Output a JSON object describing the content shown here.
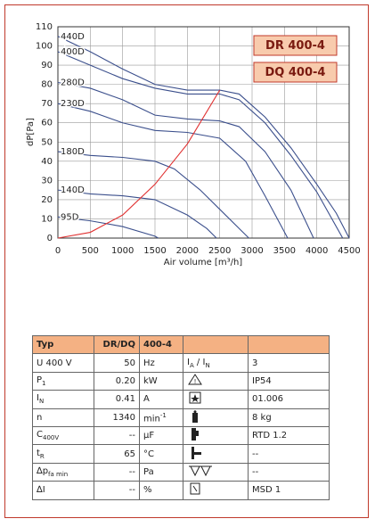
{
  "chart_data": {
    "type": "line",
    "x_label": "Air volume [m³/h]",
    "y_label": "dP[Pa]",
    "xlim": [
      0,
      4500
    ],
    "xticks": [
      0,
      500,
      1000,
      1500,
      2000,
      2500,
      3000,
      3500,
      4000,
      4500
    ],
    "ylim": [
      0,
      110
    ],
    "yticks": [
      0,
      10,
      20,
      30,
      40,
      50,
      60,
      70,
      80,
      90,
      100,
      110
    ],
    "grid": true,
    "annotations": [
      "DR 400-4",
      "DQ 400-4"
    ],
    "series": [
      {
        "name": "440D",
        "color": "#3b4f8c",
        "x": [
          0,
          500,
          1000,
          1500,
          2000,
          2500,
          2800,
          3200,
          3600,
          4000,
          4300,
          4500
        ],
        "values": [
          105,
          97,
          88,
          80,
          77,
          77,
          75,
          63,
          47,
          28,
          13,
          0
        ]
      },
      {
        "name": "400D",
        "color": "#3b4f8c",
        "x": [
          0,
          500,
          1000,
          1500,
          2000,
          2500,
          2800,
          3200,
          3600,
          4000,
          4400
        ],
        "values": [
          97,
          90,
          83,
          78,
          75,
          75,
          72,
          60,
          43,
          24,
          0
        ]
      },
      {
        "name": "280D",
        "color": "#3b4f8c",
        "x": [
          0,
          500,
          1000,
          1500,
          2000,
          2500,
          2800,
          3200,
          3600,
          3950
        ],
        "values": [
          81,
          78,
          72,
          64,
          62,
          61,
          58,
          45,
          25,
          0
        ]
      },
      {
        "name": "230D",
        "color": "#3b4f8c",
        "x": [
          0,
          500,
          1000,
          1500,
          2000,
          2500,
          2900,
          3200,
          3550
        ],
        "values": [
          70,
          66,
          60,
          56,
          55,
          52,
          40,
          22,
          0
        ]
      },
      {
        "name": "180D",
        "color": "#3b4f8c",
        "x": [
          0,
          500,
          1000,
          1500,
          1800,
          2200,
          2500,
          2800,
          2950
        ],
        "values": [
          45,
          43,
          42,
          40,
          36,
          25,
          15,
          5,
          0
        ]
      },
      {
        "name": "140D",
        "color": "#3b4f8c",
        "x": [
          0,
          500,
          1000,
          1500,
          2000,
          2300,
          2450
        ],
        "values": [
          25,
          23,
          22,
          20,
          12,
          5,
          0
        ]
      },
      {
        "name": "95D",
        "color": "#3b4f8c",
        "x": [
          0,
          500,
          1000,
          1500,
          1550
        ],
        "values": [
          11,
          9,
          6,
          1,
          0
        ]
      },
      {
        "color": "#e03030",
        "x": [
          0,
          500,
          1000,
          1500,
          2000,
          2500
        ],
        "values": [
          0,
          3,
          12,
          28,
          49,
          77
        ]
      }
    ]
  },
  "table": {
    "rows": [
      [
        [
          {
            "text": "Typ"
          }
        ],
        [
          {
            "text": "DR/DQ"
          }
        ],
        [
          {
            "text": "400-4"
          }
        ],
        [],
        []
      ],
      [
        [
          {
            "text": "U   400   V"
          }
        ],
        [
          {
            "text": "50"
          }
        ],
        [
          {
            "text": "Hz"
          }
        ],
        [
          {
            "text": "I"
          },
          {
            "text": "A",
            "sub": true
          },
          {
            "text": " / I"
          },
          {
            "text": "N",
            "sub": true
          }
        ],
        [
          {
            "text": "3"
          }
        ]
      ],
      [
        [
          {
            "text": "P"
          },
          {
            "text": "1",
            "sub": true
          }
        ],
        [
          {
            "text": "0.20"
          }
        ],
        [
          {
            "text": "kW"
          }
        ],
        [],
        [
          {
            "text": "IP54"
          }
        ]
      ],
      [
        [
          {
            "text": "I"
          },
          {
            "text": "N",
            "sub": true
          }
        ],
        [
          {
            "text": "0.41"
          }
        ],
        [
          {
            "text": "A"
          }
        ],
        [],
        [
          {
            "text": "01.006"
          }
        ]
      ],
      [
        [
          {
            "text": "n"
          }
        ],
        [
          {
            "text": "1340"
          }
        ],
        [
          {
            "text": "min"
          },
          {
            "text": "-1",
            "sup": true
          }
        ],
        [],
        [
          {
            "text": "8 kg"
          }
        ]
      ],
      [
        [
          {
            "text": "C"
          },
          {
            "text": "400V",
            "sub": true
          }
        ],
        [
          {
            "text": "--"
          }
        ],
        [
          {
            "text": "µF"
          }
        ],
        [],
        [
          {
            "text": "RTD 1.2"
          }
        ]
      ],
      [
        [
          {
            "text": "t"
          },
          {
            "text": "R",
            "sub": true
          }
        ],
        [
          {
            "text": "65"
          }
        ],
        [
          {
            "text": "°C"
          }
        ],
        [],
        [
          {
            "text": "--"
          }
        ]
      ],
      [
        [
          {
            "text": "∆p"
          },
          {
            "text": "fa min",
            "sub": true
          }
        ],
        [
          {
            "text": "--"
          }
        ],
        [
          {
            "text": "Pa"
          }
        ],
        [],
        [
          {
            "text": "--"
          }
        ]
      ],
      [
        [
          {
            "text": "∆I"
          }
        ],
        [
          {
            "text": "--"
          }
        ],
        [
          {
            "text": "%"
          }
        ],
        [],
        [
          {
            "text": "MSD 1"
          }
        ]
      ]
    ]
  }
}
